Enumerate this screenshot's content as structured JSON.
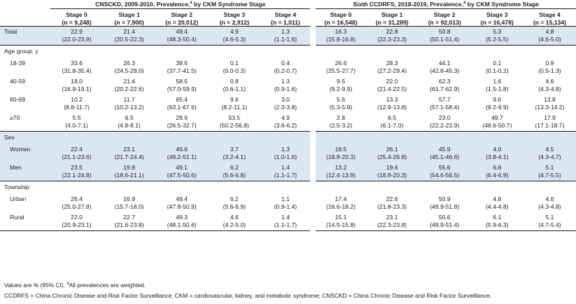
{
  "header": {
    "left_group": "CNSCKD, 2009-2010, Prevalence,",
    "right_group": "Sixth CCDRFS, 2018-2019, Prevalence,",
    "group_sup": "a",
    "group_suffix": " by CKM Syndrome Stage",
    "left_stages": [
      {
        "name": "Stage 0",
        "n": "(n = 9,248)"
      },
      {
        "name": "Stage 1",
        "n": "(n = 7,900)"
      },
      {
        "name": "Stage 2",
        "n": "(n = 20,012)"
      },
      {
        "name": "Stage 3",
        "n": "(n = 2,912)"
      },
      {
        "name": "Stage 4",
        "n": "(n = 1,011)"
      }
    ],
    "right_stages": [
      {
        "name": "Stage 0",
        "n": "(n = 16,548)"
      },
      {
        "name": "Stage 1",
        "n": "(n = 31,289)"
      },
      {
        "name": "Stage 2",
        "n": "(n = 92,013)"
      },
      {
        "name": "Stage 3",
        "n": "(n = 16,478)"
      },
      {
        "name": "Stage 4",
        "n": "(n = 15,134)"
      }
    ]
  },
  "rows": {
    "total": {
      "label": "Total",
      "cells": [
        [
          "22.9",
          "(22.0-23.9)"
        ],
        [
          "21.4",
          "(20.5-22.3)"
        ],
        [
          "49.4",
          "(48.3-50.4)"
        ],
        [
          "4.9",
          "(4.6-5.3)"
        ],
        [
          "1.3",
          "(1.1-1.6)"
        ],
        [
          "16.3",
          "(15.8-16.8)"
        ],
        [
          "22.8",
          "(22.3-23.3)"
        ],
        [
          "50.8",
          "(50.1-51.4)"
        ],
        [
          "5.3",
          "(5.2-5.5)"
        ],
        [
          "4.8",
          "(4.6-5.0)"
        ]
      ]
    },
    "age_header": "Age group, y",
    "age": [
      {
        "label": "18-39",
        "cells": [
          [
            "33.6",
            "(31.8-35.4)"
          ],
          [
            "26.3",
            "(24.5-28.0)"
          ],
          [
            "39.6",
            "(37.7-41.5)"
          ],
          [
            "0.1",
            "(0.0-0.3)"
          ],
          [
            "0.4",
            "(0.2-0.7)"
          ],
          [
            "26.6",
            "(25.5-27.7)"
          ],
          [
            "28.3",
            "(27.2-29.4)"
          ],
          [
            "44.1",
            "(42.8-45.3)"
          ],
          [
            "0.1",
            "(0.1-0.2)"
          ],
          [
            "0.9",
            "(0.5-1.3)"
          ]
        ]
      },
      {
        "label": "40-59",
        "cells": [
          [
            "18.0",
            "(16.9-19.1)"
          ],
          [
            "21.4",
            "(20.2-22.6)"
          ],
          [
            "58.5",
            "(57.0-59.9)"
          ],
          [
            "0.8",
            "(0.6-1.1)"
          ],
          [
            "1.3",
            "(0.9-1.6)"
          ],
          [
            "9.5",
            "(9.2-9.9)"
          ],
          [
            "22.0",
            "(21.4-22.5)"
          ],
          [
            "62.3",
            "(61.7-62.9)"
          ],
          [
            "1.6",
            "(1.5-1.8)"
          ],
          [
            "4.6",
            "(4.3-4.8)"
          ]
        ]
      },
      {
        "label": "60-69",
        "cells": [
          [
            "10.2",
            "(8.8-11.7)"
          ],
          [
            "11.7",
            "(10.2-13.2)"
          ],
          [
            "65.4",
            "(63.1-67.6)"
          ],
          [
            "9.6",
            "(8.2-11.1)"
          ],
          [
            "3.0",
            "(2.3-3.8)"
          ],
          [
            "5.6",
            "(5.3-5.9)"
          ],
          [
            "13.3",
            "(12.9-13.8)"
          ],
          [
            "57.7",
            "(57.1-58.4)"
          ],
          [
            "9.6",
            "(9.2-9.9)"
          ],
          [
            "13.8",
            "(13.3-14.2)"
          ]
        ]
      },
      {
        "label": "≥70",
        "cells": [
          [
            "5.5",
            "(4.0-7.1)"
          ],
          [
            "6.5",
            "(4.8-8.1)"
          ],
          [
            "29.6",
            "(26.5-32.7)"
          ],
          [
            "53.5",
            "(50.2-56.8)"
          ],
          [
            "4.9",
            "(3.6-6.2)"
          ],
          [
            "2.8",
            "(2.5-3.2)"
          ],
          [
            "6.5",
            "(6.1-7.0)"
          ],
          [
            "23.0",
            "(22.2-23.9)"
          ],
          [
            "49.7",
            "(48.6-50.7)"
          ],
          [
            "17.9",
            "(17.1-18.7)"
          ]
        ]
      }
    ],
    "sex_header": "Sex",
    "sex": [
      {
        "label": "Women",
        "cells": [
          [
            "22.4",
            "(21.1-23.6)"
          ],
          [
            "23.1",
            "(21.7-24.4)"
          ],
          [
            "49.6",
            "(48.2-51.1)"
          ],
          [
            "3.7",
            "(3.2-4.1)"
          ],
          [
            "1.3",
            "(1.0-1.6)"
          ],
          [
            "19.5",
            "(18.8-20.3)"
          ],
          [
            "26.1",
            "(25.4-26.8)"
          ],
          [
            "45.9",
            "(45.1-46.6)"
          ],
          [
            "4.0",
            "(3.8-4.1)"
          ],
          [
            "4.5",
            "(4.3-4.7)"
          ]
        ]
      },
      {
        "label": "Men",
        "cells": [
          [
            "23.5",
            "(22.1-24.8)"
          ],
          [
            "19.8",
            "(18.6-21.1)"
          ],
          [
            "49.1",
            "(47.5-50.6)"
          ],
          [
            "6.2",
            "(5.6-6.8)"
          ],
          [
            "1.4",
            "(1.1-1.7)"
          ],
          [
            "13.2",
            "(12.4-13.9)"
          ],
          [
            "19.6",
            "(18.8-20.3)"
          ],
          [
            "55.6",
            "(54.6-56.5)"
          ],
          [
            "6.6",
            "(6.4-6.9)"
          ],
          [
            "5.1",
            "(4.7-5.5)"
          ]
        ]
      }
    ],
    "township_header": "Township",
    "township": [
      {
        "label": "Urban",
        "cells": [
          [
            "26.4",
            "(25.0-27.8)"
          ],
          [
            "16.9",
            "(15.7-18.0)"
          ],
          [
            "49.4",
            "(47.8-50.9)"
          ],
          [
            "6.2",
            "(5.6-6.9)"
          ],
          [
            "1.1",
            "(0.9-1.4)"
          ],
          [
            "17.4",
            "(16.6-18.2)"
          ],
          [
            "22.6",
            "(21.8-23.3)"
          ],
          [
            "50.9",
            "(49.9-51.8)"
          ],
          [
            "4.6",
            "(4.4-4.8)"
          ],
          [
            "4.6",
            "(4.3-4.8)"
          ]
        ]
      },
      {
        "label": "Rural",
        "cells": [
          [
            "22.0",
            "(20.9-23.1)"
          ],
          [
            "22.7",
            "(21.6-23.8)"
          ],
          [
            "49.3",
            "(48.1-50.6)"
          ],
          [
            "4.6",
            "(4.2-5.0)"
          ],
          [
            "1.4",
            "(1.1-1.7)"
          ],
          [
            "15.1",
            "(14.5-15.8)"
          ],
          [
            "23.1",
            "(22.3-23.8)"
          ],
          [
            "50.6",
            "(49.9-51.4)"
          ],
          [
            "6.1",
            "(5.9-6.3)"
          ],
          [
            "5.1",
            "(4.7-5.4)"
          ]
        ]
      }
    ]
  },
  "footnotes": {
    "line1_pre": "Values are % (95% CI). ",
    "line1_sup": "a",
    "line1_post": "All prevalences are weighted.",
    "line2": "CCDRFS = China Chronic Disease and Risk Factor Surveillance; CKM = cardiovascular, kidney, and metabolic syndrome; CNSCKD = China Chronic Disease and Risk Factor Surveillance."
  }
}
